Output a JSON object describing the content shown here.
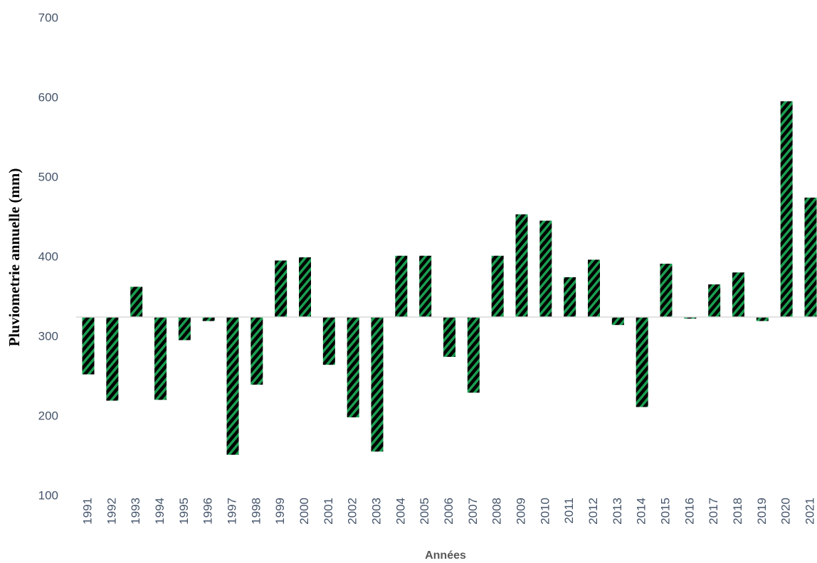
{
  "chart_data": {
    "type": "bar",
    "y_label": "Pluviometrie annuelle (mm)",
    "x_label": "Années",
    "categories": [
      "1991",
      "1992",
      "1993",
      "1994",
      "1995",
      "1996",
      "1997",
      "1998",
      "1999",
      "2000",
      "2001",
      "2002",
      "2003",
      "2004",
      "2005",
      "2006",
      "2007",
      "2008",
      "2009",
      "2010",
      "2011",
      "2012",
      "2013",
      "2014",
      "2015",
      "2016",
      "2017",
      "2018",
      "2019",
      "2020",
      "2021"
    ],
    "values": [
      253,
      220,
      363,
      221,
      296,
      320,
      152,
      240,
      396,
      400,
      265,
      199,
      156,
      402,
      402,
      275,
      230,
      402,
      454,
      446,
      375,
      397,
      315,
      212,
      392,
      323,
      366,
      381,
      320,
      596,
      475
    ],
    "baseline": 325,
    "color": "#1a9e50",
    "stripe_color": "#000000",
    "ylim": [
      100,
      700
    ],
    "yticks": [
      100,
      200,
      300,
      400,
      500,
      600,
      700
    ],
    "grid": false
  }
}
